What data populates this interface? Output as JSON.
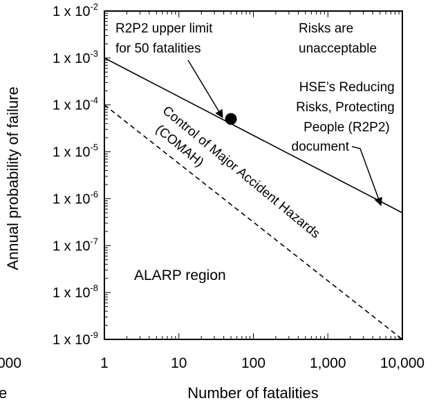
{
  "chart_data": {
    "type": "line",
    "xlabel": "Number of fatalities",
    "ylabel": "Annual probability of failure",
    "x_scale": "log",
    "y_scale": "log",
    "xlim": [
      1,
      10000
    ],
    "ylim": [
      1e-09,
      0.01
    ],
    "x_ticks": [
      {
        "value": 1,
        "label": "1"
      },
      {
        "value": 10,
        "label": "10"
      },
      {
        "value": 100,
        "label": "100"
      },
      {
        "value": 1000,
        "label": "1,000"
      },
      {
        "value": 10000,
        "label": "10,000"
      }
    ],
    "y_ticks": [
      {
        "value": 0.01,
        "base": "1 x 10",
        "exp": "-2"
      },
      {
        "value": 0.001,
        "base": "1 x 10",
        "exp": "-3"
      },
      {
        "value": 0.0001,
        "base": "1 x 10",
        "exp": "-4"
      },
      {
        "value": 1e-05,
        "base": "1 x 10",
        "exp": "-5"
      },
      {
        "value": 1e-06,
        "base": "1 x 10",
        "exp": "-6"
      },
      {
        "value": 1e-07,
        "base": "1 x 10",
        "exp": "-7"
      },
      {
        "value": 1e-08,
        "base": "1 x 10",
        "exp": "-8"
      },
      {
        "value": 1e-09,
        "base": "1 x 10",
        "exp": "-9"
      }
    ],
    "series": [
      {
        "style": "solid",
        "x": [
          1,
          10000
        ],
        "y": [
          0.001,
          5e-07
        ]
      },
      {
        "style": "dashed",
        "x": [
          1,
          10000
        ],
        "y": [
          0.0001,
          1e-09
        ]
      }
    ],
    "point": {
      "x": 50,
      "y": 5e-05
    },
    "annotations": {
      "r2p2_limit": [
        "R2P2 upper limit",
        "for 50 fatalities"
      ],
      "unacceptable": [
        "Risks are",
        "unacceptable"
      ],
      "hse_doc": [
        "HSE’s Reducing",
        "Risks, Protecting",
        "People (R2P2)",
        "document"
      ],
      "comah_main": "Control of Major Accident Hazards",
      "comah_abbr": "(COMAH)",
      "alarp": "ALARP region"
    },
    "ghost_x_tick_label": "000",
    "ghost_x_label_fragment": "e"
  }
}
